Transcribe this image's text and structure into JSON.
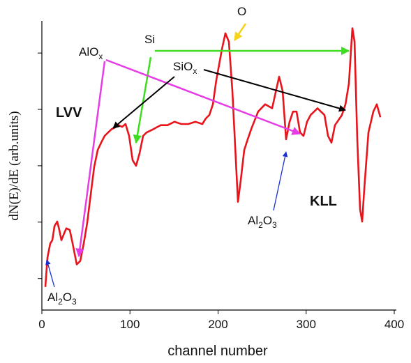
{
  "chart_data": {
    "type": "line",
    "xlabel": "channel number",
    "ylabel": "dN(E)/dE (arb.units)",
    "xlim": [
      0,
      400
    ],
    "xticks": [
      0,
      100,
      200,
      300,
      400
    ],
    "ylim": [
      0.44,
      5.57
    ],
    "yticks": [
      1,
      2,
      3,
      4,
      5
    ],
    "series": [
      {
        "color": "#e8141b",
        "x": [
          4.0,
          6.3,
          9.5,
          11.9,
          14.3,
          17.4,
          19.8,
          22.2,
          25.3,
          27.7,
          31.7,
          34.9,
          39.6,
          43.6,
          47.5,
          51.5,
          55.4,
          59.4,
          63.4,
          67.3,
          71.3,
          75.2,
          79.2,
          83.2,
          87.1,
          91.1,
          95.0,
          99.0,
          103.0,
          106.9,
          110.9,
          114.9,
          118.8,
          126.7,
          134.7,
          142.6,
          150.5,
          158.4,
          166.3,
          174.3,
          182.2,
          186.1,
          190.1,
          194.1,
          198.0,
          204.4,
          208.3,
          212.3,
          216.2,
          220.2,
          222.6,
          225.7,
          229.7,
          233.7,
          237.6,
          245.5,
          253.5,
          261.4,
          269.3,
          273.3,
          277.2,
          281.2,
          285.1,
          289.1,
          293.1,
          297.0,
          301.0,
          305.0,
          312.9,
          320.8,
          324.8,
          328.7,
          332.7,
          340.6,
          344.6,
          348.5,
          352.5,
          354.9,
          358.0,
          361.2,
          363.6,
          366.0,
          370.7,
          376.2,
          380.2,
          384.2
        ],
        "values": [
          0.85,
          1.37,
          1.62,
          1.68,
          1.93,
          2.01,
          1.86,
          1.68,
          1.8,
          1.89,
          1.86,
          1.62,
          1.25,
          1.31,
          1.62,
          1.99,
          2.48,
          2.98,
          3.28,
          3.41,
          3.53,
          3.59,
          3.65,
          3.68,
          3.72,
          3.69,
          3.74,
          3.53,
          3.1,
          3.0,
          3.22,
          3.53,
          3.59,
          3.65,
          3.72,
          3.72,
          3.78,
          3.74,
          3.74,
          3.78,
          3.74,
          3.84,
          3.9,
          4.09,
          4.52,
          5.07,
          5.35,
          5.2,
          4.33,
          3.1,
          2.36,
          2.73,
          3.28,
          3.47,
          3.65,
          3.96,
          4.09,
          4.02,
          4.58,
          4.33,
          3.47,
          3.78,
          3.96,
          3.96,
          3.59,
          3.53,
          3.78,
          3.9,
          4.02,
          3.9,
          3.53,
          3.41,
          3.72,
          3.9,
          4.09,
          4.46,
          5.44,
          5.2,
          3.47,
          2.23,
          2.01,
          2.6,
          3.59,
          3.96,
          4.09,
          3.86
        ]
      }
    ],
    "annotations": [
      "O",
      "Si",
      "AlOx",
      "SiOx",
      "LVV",
      "KLL",
      "Al2O3",
      "Al2O3"
    ]
  }
}
